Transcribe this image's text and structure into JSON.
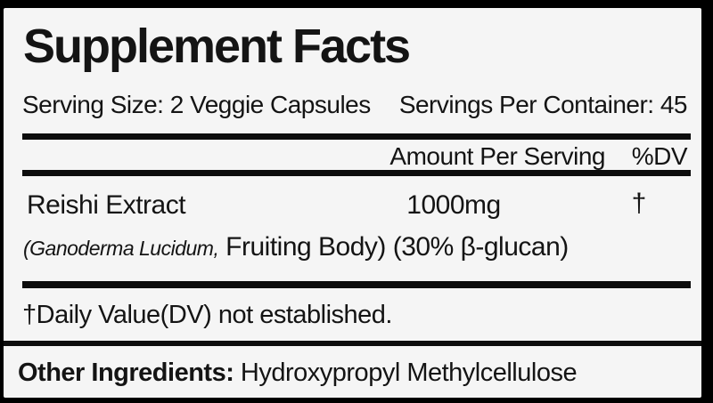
{
  "colors": {
    "outer_background": "#000000",
    "panel_background": "#f5f5f5",
    "text": "#141414",
    "rule": "#0d0d0d"
  },
  "panel": {
    "title": "Supplement Facts",
    "serving_size": "Serving Size: 2 Veggie Capsules",
    "servings_per_container": "Servings Per Container: 45",
    "columns": {
      "amount": "Amount Per Serving",
      "dv": "%DV"
    },
    "rows": [
      {
        "name": "Reishi Extract",
        "amount": "1000mg",
        "dv": "†",
        "detail_italic": "(Ganoderma Lucidum,",
        "detail_rest": " Fruiting Body) (30% β-glucan)"
      }
    ],
    "footnote": "†Daily Value(DV) not established.",
    "other_ingredients_label": "Other Ingredients:",
    "other_ingredients_value": " Hydroxypropyl Methylcellulose"
  }
}
